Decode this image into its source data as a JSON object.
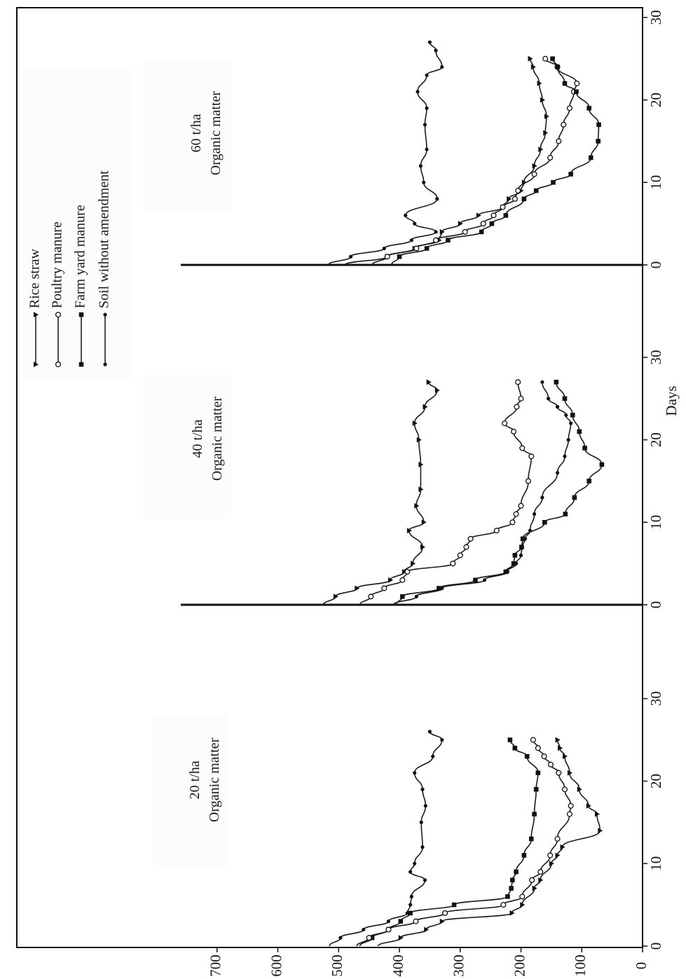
{
  "chart_data": {
    "type": "line",
    "orientation": "rotated 90° clockwise (x axis runs down the right edge, y axis along the bottom edge)",
    "x_axis": {
      "label": "Days",
      "ticks": [
        "0",
        "10",
        "20",
        "30"
      ],
      "range": [
        0,
        30
      ]
    },
    "y_axis": {
      "label": "",
      "ticks": [
        "0",
        "100",
        "200",
        "300",
        "400",
        "500",
        "600",
        "700"
      ],
      "range": [
        0,
        800
      ]
    },
    "legend": {
      "placement": "top-left",
      "entries": [
        {
          "name": "Rice straw",
          "marker": "triangle"
        },
        {
          "name": "Poultry manure",
          "marker": "open-circle"
        },
        {
          "name": "Farm yard manure",
          "marker": "square"
        },
        {
          "name": "Soil without amendment",
          "marker": "dot"
        }
      ]
    },
    "panels": [
      {
        "label_line1": "20 t/ha",
        "label_line2": "Organic matter",
        "series": [
          {
            "name": "Soil without amendment",
            "points": [
              [
                0,
                515
              ],
              [
                1,
                497
              ],
              [
                2,
                459
              ],
              [
                3,
                418
              ],
              [
                4,
                387
              ],
              [
                5,
                382
              ],
              [
                6,
                380
              ],
              [
                8,
                358
              ],
              [
                9,
                382
              ],
              [
                10,
                375
              ],
              [
                12,
                362
              ],
              [
                15,
                364
              ],
              [
                17,
                357
              ],
              [
                19,
                362
              ],
              [
                21,
                375
              ],
              [
                23,
                345
              ],
              [
                25,
                330
              ],
              [
                26,
                350
              ]
            ]
          },
          {
            "name": "Farm yard manure",
            "points": [
              [
                0,
                465
              ],
              [
                1,
                445
              ],
              [
                2,
                418
              ],
              [
                3,
                398
              ],
              [
                4,
                382
              ],
              [
                5,
                310
              ],
              [
                6,
                222
              ],
              [
                7,
                216
              ],
              [
                8,
                214
              ],
              [
                9,
                208
              ],
              [
                11,
                195
              ],
              [
                13,
                183
              ],
              [
                16,
                178
              ],
              [
                19,
                175
              ],
              [
                21,
                172
              ],
              [
                23,
                190
              ],
              [
                24,
                210
              ],
              [
                25,
                218
              ]
            ]
          },
          {
            "name": "Poultry manure",
            "points": [
              [
                0,
                470
              ],
              [
                1,
                450
              ],
              [
                2,
                418
              ],
              [
                3,
                373
              ],
              [
                4,
                325
              ],
              [
                5,
                229
              ],
              [
                6,
                198
              ],
              [
                8,
                182
              ],
              [
                9,
                168
              ],
              [
                11,
                152
              ],
              [
                13,
                140
              ],
              [
                16,
                120
              ],
              [
                17,
                118
              ],
              [
                19,
                128
              ],
              [
                21,
                138
              ],
              [
                22,
                151
              ],
              [
                23,
                162
              ],
              [
                24,
                172
              ],
              [
                25,
                180
              ]
            ]
          },
          {
            "name": "Rice straw",
            "points": [
              [
                0,
                435
              ],
              [
                1,
                398
              ],
              [
                2,
                356
              ],
              [
                3,
                330
              ],
              [
                4,
                215
              ],
              [
                5,
                198
              ],
              [
                7,
                178
              ],
              [
                8,
                168
              ],
              [
                10,
                150
              ],
              [
                11,
                140
              ],
              [
                12,
                132
              ],
              [
                14,
                70
              ],
              [
                16,
                75
              ],
              [
                17,
                89
              ],
              [
                19,
                104
              ],
              [
                21,
                120
              ],
              [
                23,
                128
              ],
              [
                24,
                136
              ],
              [
                25,
                140
              ]
            ]
          }
        ]
      },
      {
        "label_line1": "40 t/ha",
        "label_line2": "Organic matter",
        "series": [
          {
            "name": "Rice straw",
            "points": [
              [
                0,
                525
              ],
              [
                1,
                505
              ],
              [
                2,
                470
              ],
              [
                3,
                415
              ],
              [
                4,
                392
              ],
              [
                5,
                378
              ],
              [
                7,
                362
              ],
              [
                9,
                384
              ],
              [
                10,
                360
              ],
              [
                12,
                372
              ],
              [
                14,
                365
              ],
              [
                17,
                365
              ],
              [
                20,
                368
              ],
              [
                22,
                375
              ],
              [
                24,
                358
              ],
              [
                26,
                338
              ],
              [
                27,
                352
              ]
            ]
          },
          {
            "name": "Poultry manure",
            "points": [
              [
                0,
                465
              ],
              [
                1,
                447
              ],
              [
                2,
                425
              ],
              [
                3,
                395
              ],
              [
                4,
                387
              ],
              [
                5,
                312
              ],
              [
                6,
                300
              ],
              [
                7,
                290
              ],
              [
                8,
                283
              ],
              [
                9,
                240
              ],
              [
                10,
                214
              ],
              [
                11,
                208
              ],
              [
                12,
                200
              ],
              [
                15,
                188
              ],
              [
                18,
                183
              ],
              [
                19,
                198
              ],
              [
                21,
                212
              ],
              [
                22,
                227
              ],
              [
                24,
                207
              ],
              [
                25,
                200
              ],
              [
                27,
                205
              ]
            ]
          },
          {
            "name": "Soil without amendment",
            "points": [
              [
                0,
                410
              ],
              [
                1,
                372
              ],
              [
                2,
                330
              ],
              [
                3,
                260
              ],
              [
                4,
                222
              ],
              [
                5,
                208
              ],
              [
                6,
                200
              ],
              [
                7,
                198
              ],
              [
                8,
                193
              ],
              [
                9,
                185
              ],
              [
                11,
                178
              ],
              [
                13,
                165
              ],
              [
                16,
                140
              ],
              [
                18,
                128
              ],
              [
                20,
                122
              ],
              [
                22,
                118
              ],
              [
                23,
                126
              ],
              [
                24,
                140
              ],
              [
                25,
                155
              ],
              [
                27,
                165
              ]
            ]
          },
          {
            "name": "Farm yard manure",
            "points": [
              [
                0,
                405
              ],
              [
                1,
                395
              ],
              [
                2,
                335
              ],
              [
                3,
                275
              ],
              [
                4,
                225
              ],
              [
                5,
                212
              ],
              [
                6,
                210
              ],
              [
                7,
                199
              ],
              [
                8,
                197
              ],
              [
                10,
                161
              ],
              [
                11,
                127
              ],
              [
                13,
                112
              ],
              [
                15,
                88
              ],
              [
                17,
                67
              ],
              [
                19,
                95
              ],
              [
                21,
                104
              ],
              [
                23,
                115
              ],
              [
                25,
                128
              ],
              [
                27,
                142
              ]
            ]
          }
        ]
      },
      {
        "label_line1": "60 t/ha",
        "label_line2": "Organic matter",
        "series": [
          {
            "name": "Soil without amendment",
            "points": [
              [
                0,
                517
              ],
              [
                1,
                480
              ],
              [
                2,
                425
              ],
              [
                3,
                380
              ],
              [
                4,
                340
              ],
              [
                5,
                375
              ],
              [
                6,
                390
              ],
              [
                8,
                338
              ],
              [
                10,
                360
              ],
              [
                12,
                365
              ],
              [
                14,
                355
              ],
              [
                17,
                358
              ],
              [
                19,
                355
              ],
              [
                21,
                370
              ],
              [
                23,
                355
              ],
              [
                24,
                330
              ],
              [
                26,
                340
              ],
              [
                27,
                350
              ]
            ]
          },
          {
            "name": "Rice straw",
            "points": [
              [
                0,
                490
              ],
              [
                1,
                420
              ],
              [
                2,
                375
              ],
              [
                3,
                335
              ],
              [
                4,
                330
              ],
              [
                5,
                300
              ],
              [
                6,
                270
              ],
              [
                7,
                230
              ],
              [
                8,
                220
              ],
              [
                9,
                200
              ],
              [
                10,
                195
              ],
              [
                12,
                178
              ],
              [
                14,
                168
              ],
              [
                16,
                160
              ],
              [
                18,
                158
              ],
              [
                20,
                165
              ],
              [
                22,
                170
              ],
              [
                24,
                180
              ],
              [
                25,
                185
              ]
            ]
          },
          {
            "name": "Poultry manure",
            "points": [
              [
                0,
                445
              ],
              [
                1,
                420
              ],
              [
                2,
                372
              ],
              [
                3,
                340
              ],
              [
                4,
                292
              ],
              [
                5,
                262
              ],
              [
                6,
                245
              ],
              [
                7,
                230
              ],
              [
                8,
                210
              ],
              [
                9,
                205
              ],
              [
                11,
                178
              ],
              [
                13,
                152
              ],
              [
                15,
                138
              ],
              [
                17,
                130
              ],
              [
                19,
                120
              ],
              [
                21,
                113
              ],
              [
                22,
                108
              ],
              [
                24,
                140
              ],
              [
                25,
                160
              ]
            ]
          },
          {
            "name": "Farm yard manure",
            "points": [
              [
                0,
                413
              ],
              [
                1,
                400
              ],
              [
                2,
                355
              ],
              [
                3,
                320
              ],
              [
                4,
                265
              ],
              [
                5,
                248
              ],
              [
                6,
                225
              ],
              [
                8,
                195
              ],
              [
                9,
                175
              ],
              [
                10,
                147
              ],
              [
                11,
                118
              ],
              [
                13,
                85
              ],
              [
                15,
                73
              ],
              [
                17,
                72
              ],
              [
                19,
                88
              ],
              [
                21,
                109
              ],
              [
                22,
                128
              ],
              [
                24,
                140
              ],
              [
                25,
                148
              ]
            ]
          }
        ]
      }
    ]
  }
}
